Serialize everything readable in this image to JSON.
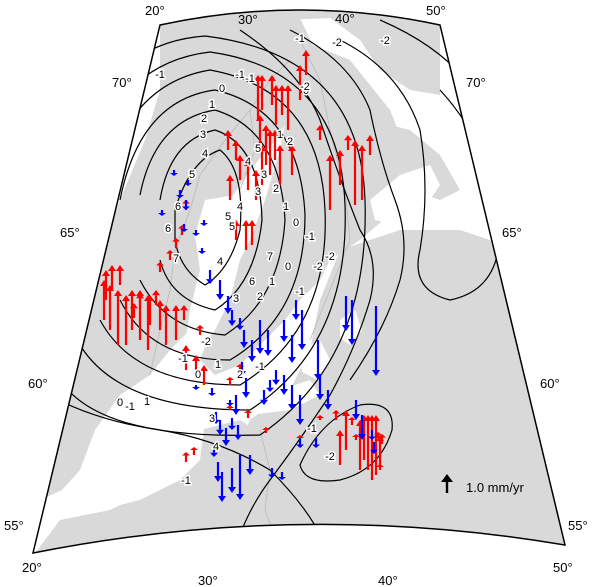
{
  "map": {
    "colors": {
      "land": "#d9d9d9",
      "sea": "#ffffff",
      "border": "#b8b8b8",
      "frame": "#000000",
      "contour": "#000000",
      "uplift": "#ff0000",
      "subsidence": "#0000ff",
      "legend_arrow": "#000000"
    },
    "frame_labels": {
      "top": [
        "20°",
        "30°",
        "40°",
        "50°"
      ],
      "bottom": [
        "20°",
        "30°",
        "40°",
        "50°"
      ],
      "left": [
        "70°",
        "65°",
        "60°",
        "55°"
      ],
      "right": [
        "70°",
        "65°",
        "60°",
        "55°"
      ]
    },
    "contour_labels": [
      "-1",
      "-1",
      "0",
      "1",
      "2",
      "3",
      "4",
      "5",
      "6",
      "7",
      "6",
      "5",
      "4",
      "3",
      "2",
      "1",
      "0",
      "-1",
      "-2",
      "-1",
      "-2",
      "-2",
      "5",
      "4",
      "3",
      "2",
      "1",
      "0",
      "-1",
      "-2",
      "-2",
      "-1",
      "0",
      "1",
      "2",
      "3",
      "4",
      "5",
      "6",
      "7",
      "-1",
      "0",
      "1",
      "-1",
      "-2",
      "-1",
      "0",
      "1",
      "2",
      "3",
      "4",
      "-1",
      "-2",
      "-1"
    ],
    "legend": {
      "icon": "arrow-up-icon",
      "label": "1.0 mm/yr"
    }
  }
}
